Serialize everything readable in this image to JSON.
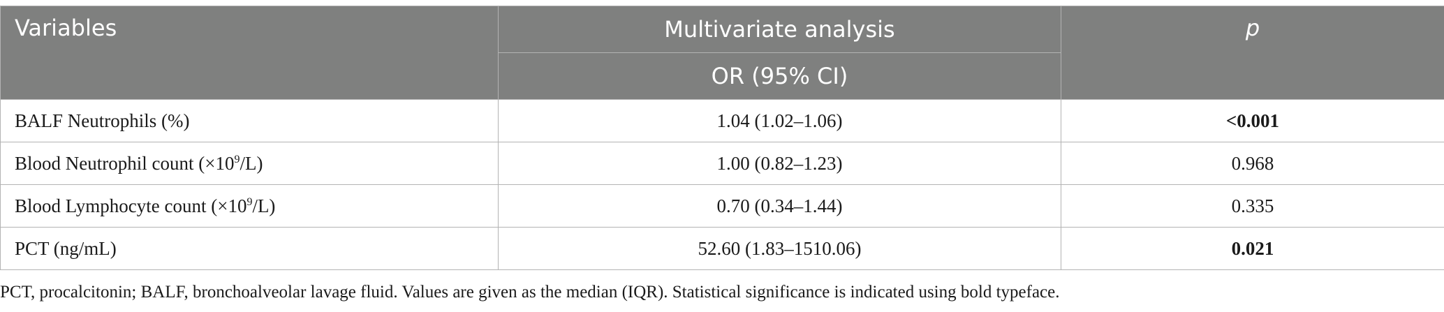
{
  "header": {
    "variables": "Variables",
    "multivariate": "Multivariate analysis",
    "or_ci": "OR (95% CI)",
    "p": "p"
  },
  "rows": [
    {
      "var_prefix": "BALF Neutrophils (%)",
      "var_sup": "",
      "var_suffix": "",
      "or_ci": "1.04 (1.02–1.06)",
      "p": "<0.001",
      "significant": true
    },
    {
      "var_prefix": "Blood Neutrophil count (×10",
      "var_sup": "9",
      "var_suffix": "/L)",
      "or_ci": "1.00 (0.82–1.23)",
      "p": "0.968",
      "significant": false
    },
    {
      "var_prefix": "Blood Lymphocyte count (×10",
      "var_sup": "9",
      "var_suffix": "/L)",
      "or_ci": "0.70 (0.34–1.44)",
      "p": "0.335",
      "significant": false
    },
    {
      "var_prefix": "PCT (ng/mL)",
      "var_sup": "",
      "var_suffix": "",
      "or_ci": "52.60 (1.83–1510.06)",
      "p": "0.021",
      "significant": true
    }
  ],
  "footnote": "PCT, procalcitonin; BALF, bronchoalveolar lavage fluid. Values are given as the median (IQR). Statistical significance is indicated using bold typeface."
}
